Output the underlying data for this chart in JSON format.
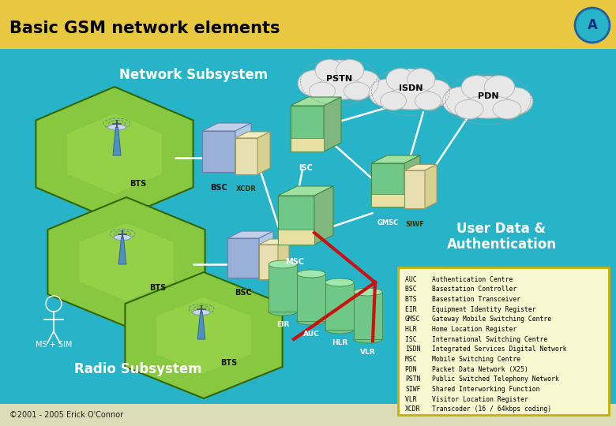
{
  "title": "Basic GSM network elements",
  "title_bg": "#e8c840",
  "main_bg": "#28b4c8",
  "footer_bg": "#f0f0e0",
  "title_color": "#000000",
  "title_fontsize": 15,
  "logo_text": "A",
  "network_subsystem_label": "Network Subsystem",
  "radio_subsystem_label": "Radio Subsystem",
  "user_data_label": "User Data &\nAuthentication",
  "copyright": "©2001 - 2005 Erick O'Connor",
  "legend_entries": [
    [
      "AUC ",
      "Authentication Centre"
    ],
    [
      "BSC ",
      "Basestation Controller"
    ],
    [
      "BTS ",
      "Basestation Transceiver"
    ],
    [
      "EIR ",
      "Equipment Identity Register"
    ],
    [
      "GMSC",
      "Gateway Mobile Switching Centre"
    ],
    [
      "HLR ",
      "Home Location Register"
    ],
    [
      "ISC ",
      "International Switching Centre"
    ],
    [
      "ISDN",
      "Integrated Services Digital Network"
    ],
    [
      "MSC ",
      "Mobile Switching Centre"
    ],
    [
      "PDN ",
      "Packet Data Network (X25)"
    ],
    [
      "PSTN",
      "Public Switched Telephony Network"
    ],
    [
      "SIWF",
      "Shared Interworking Function"
    ],
    [
      "VLR ",
      "Visitor Location Register"
    ],
    [
      "XCDR",
      "Transcoder (16 / 64kbps coding)"
    ]
  ]
}
